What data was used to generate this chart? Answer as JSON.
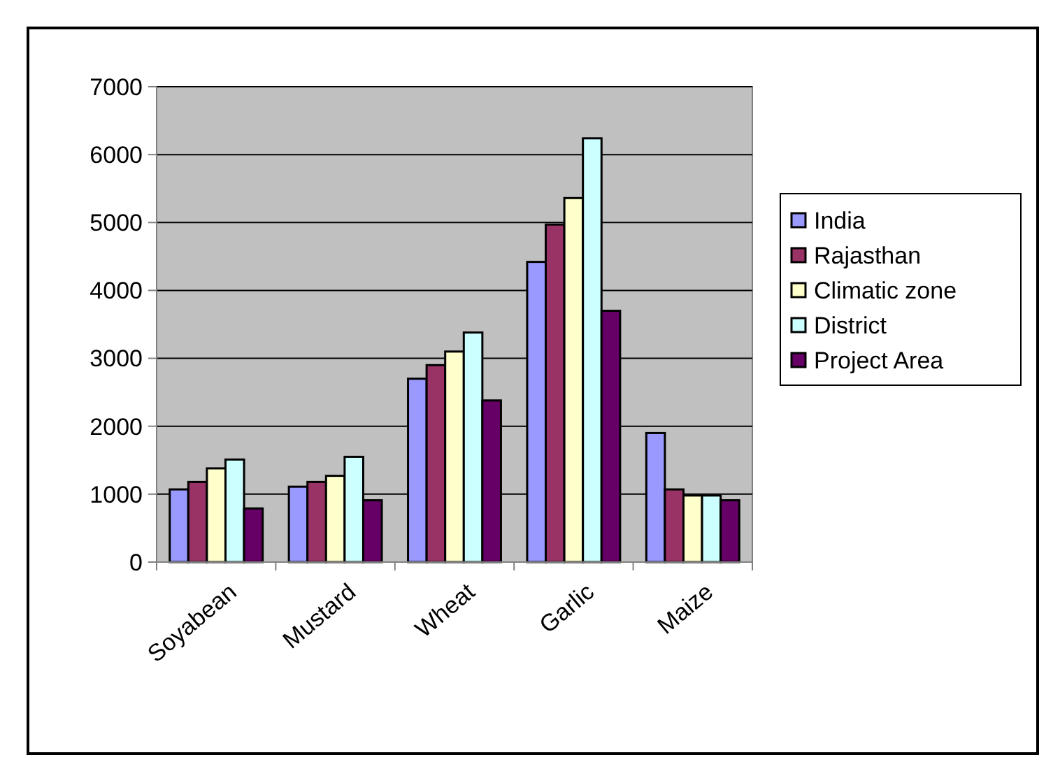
{
  "chart_data": {
    "type": "bar",
    "categories": [
      "Soyabean",
      "Mustard",
      "Wheat",
      "Garlic",
      "Maize"
    ],
    "series": [
      {
        "name": "India",
        "color": "#9999ff",
        "values": [
          1070,
          1110,
          2700,
          4420,
          1900
        ]
      },
      {
        "name": "Rajasthan",
        "color": "#993366",
        "values": [
          1180,
          1180,
          2900,
          4970,
          1070
        ]
      },
      {
        "name": "Climatic zone",
        "color": "#ffffcc",
        "values": [
          1380,
          1270,
          3100,
          5360,
          980
        ]
      },
      {
        "name": "District",
        "color": "#ccffff",
        "values": [
          1510,
          1550,
          3380,
          6240,
          980
        ]
      },
      {
        "name": "Project Area",
        "color": "#660066",
        "values": [
          790,
          910,
          2380,
          3700,
          910
        ]
      }
    ],
    "ylim": [
      0,
      7000
    ],
    "yticks": [
      0,
      1000,
      2000,
      3000,
      4000,
      5000,
      6000,
      7000
    ],
    "grid": "y",
    "legend": "right"
  }
}
